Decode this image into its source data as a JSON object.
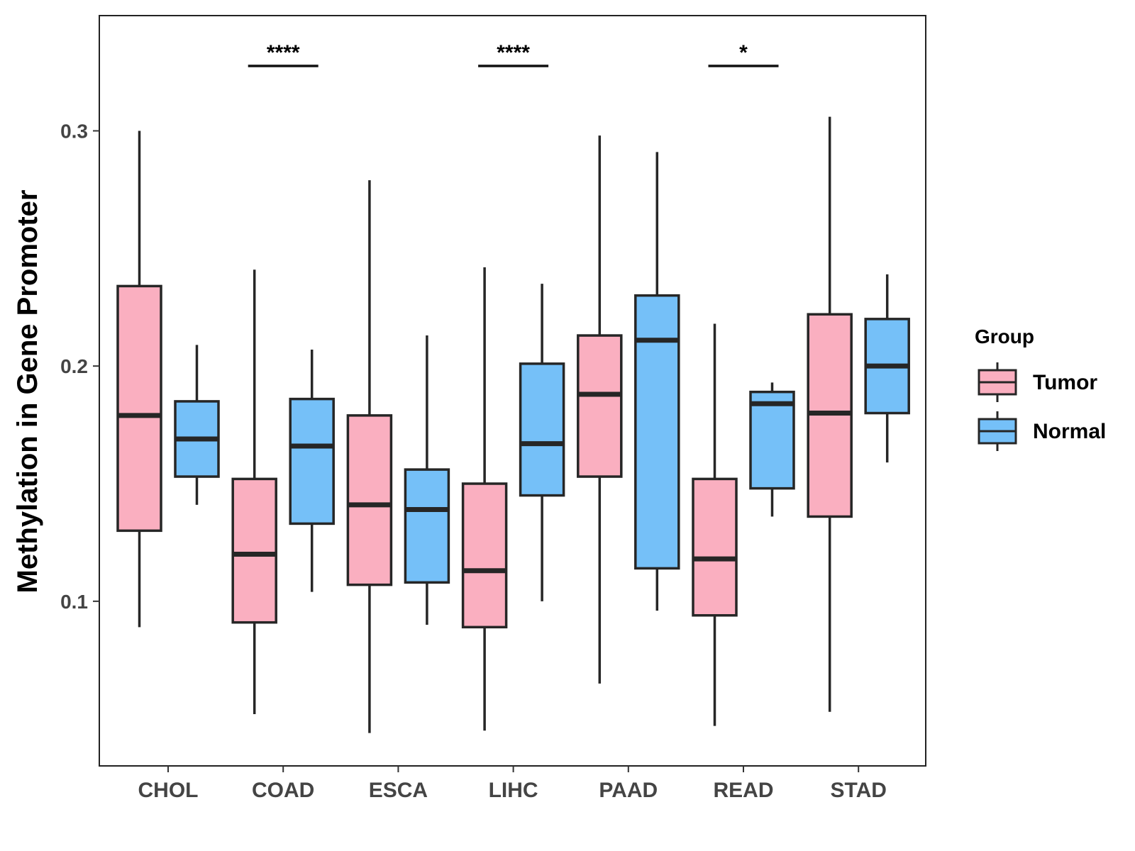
{
  "chart_data": {
    "type": "boxplot",
    "title": "",
    "xlabel": "",
    "ylabel": "Methylation in Gene Promoter",
    "ylim": [
      0.03,
      0.349
    ],
    "yticks": [
      0.1,
      0.2,
      0.3
    ],
    "ytick_labels": [
      "0.1",
      "0.2",
      "0.3"
    ],
    "categories": [
      "CHOL",
      "COAD",
      "ESCA",
      "LIHC",
      "PAAD",
      "READ",
      "STAD"
    ],
    "legend": {
      "title": "Group",
      "position": "right",
      "entries": [
        "Tumor",
        "Normal"
      ]
    },
    "colors": {
      "Tumor": "#FAAFC0",
      "Normal": "#75C0F8",
      "stroke": "#262626"
    },
    "series": [
      {
        "name": "Tumor",
        "boxes": [
          {
            "min": 0.089,
            "q1": 0.13,
            "median": 0.179,
            "q3": 0.234,
            "max": 0.3
          },
          {
            "min": 0.052,
            "q1": 0.091,
            "median": 0.12,
            "q3": 0.152,
            "max": 0.241
          },
          {
            "min": 0.044,
            "q1": 0.107,
            "median": 0.141,
            "q3": 0.179,
            "max": 0.279
          },
          {
            "min": 0.045,
            "q1": 0.089,
            "median": 0.113,
            "q3": 0.15,
            "max": 0.242
          },
          {
            "min": 0.065,
            "q1": 0.153,
            "median": 0.188,
            "q3": 0.213,
            "max": 0.298
          },
          {
            "min": 0.047,
            "q1": 0.094,
            "median": 0.118,
            "q3": 0.152,
            "max": 0.218
          },
          {
            "min": 0.053,
            "q1": 0.136,
            "median": 0.18,
            "q3": 0.222,
            "max": 0.306
          }
        ]
      },
      {
        "name": "Normal",
        "boxes": [
          {
            "min": 0.141,
            "q1": 0.153,
            "median": 0.169,
            "q3": 0.185,
            "max": 0.209
          },
          {
            "min": 0.104,
            "q1": 0.133,
            "median": 0.166,
            "q3": 0.186,
            "max": 0.207
          },
          {
            "min": 0.09,
            "q1": 0.108,
            "median": 0.139,
            "q3": 0.156,
            "max": 0.213
          },
          {
            "min": 0.1,
            "q1": 0.145,
            "median": 0.167,
            "q3": 0.201,
            "max": 0.235
          },
          {
            "min": 0.096,
            "q1": 0.114,
            "median": 0.211,
            "q3": 0.23,
            "max": 0.291
          },
          {
            "min": 0.136,
            "q1": 0.148,
            "median": 0.184,
            "q3": 0.189,
            "max": 0.193
          },
          {
            "min": 0.159,
            "q1": 0.18,
            "median": 0.2,
            "q3": 0.22,
            "max": 0.239
          }
        ]
      }
    ],
    "annotations": [
      {
        "category": "COAD",
        "label": "****"
      },
      {
        "category": "LIHC",
        "label": "****"
      },
      {
        "category": "READ",
        "label": "*"
      }
    ]
  }
}
